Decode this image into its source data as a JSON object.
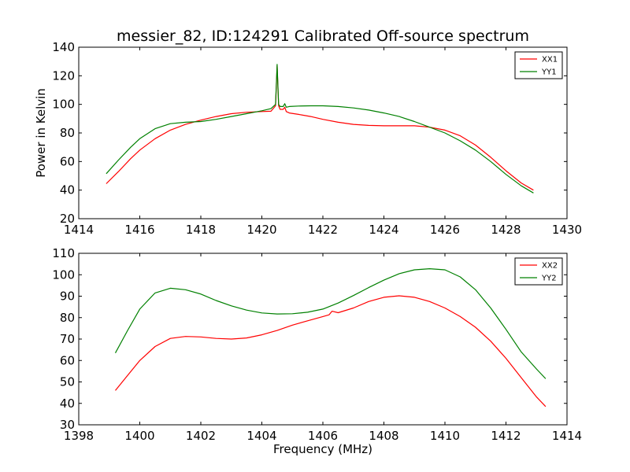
{
  "chart_data": [
    {
      "type": "line",
      "title": "messier_82, ID:124291 Calibrated Off-source spectrum",
      "xlabel": "",
      "ylabel": "Power in Kelvin",
      "xlim": [
        1414,
        1430
      ],
      "ylim": [
        20,
        140
      ],
      "xticks": [
        1414,
        1416,
        1418,
        1420,
        1422,
        1424,
        1426,
        1428,
        1430
      ],
      "yticks": [
        20,
        40,
        60,
        80,
        100,
        120,
        140
      ],
      "legend_position": "top-right",
      "series": [
        {
          "name": "XX1",
          "color": "#ff0000",
          "x": [
            1414.9,
            1415.3,
            1415.7,
            1416.0,
            1416.5,
            1417.0,
            1417.5,
            1418.0,
            1418.5,
            1419.0,
            1419.5,
            1420.0,
            1420.3,
            1420.45,
            1420.5,
            1420.55,
            1420.6,
            1420.7,
            1420.75,
            1420.8,
            1420.9,
            1421.2,
            1421.6,
            1422.0,
            1422.5,
            1423.0,
            1423.5,
            1424.0,
            1424.5,
            1425.0,
            1425.5,
            1426.0,
            1426.5,
            1427.0,
            1427.5,
            1428.0,
            1428.5,
            1428.9
          ],
          "y": [
            44.5,
            53,
            62,
            68,
            76,
            82,
            86,
            89,
            91.5,
            93.5,
            94.5,
            95,
            95.2,
            99,
            127,
            99,
            96.5,
            96.5,
            98,
            95,
            94,
            93,
            91.5,
            89.5,
            87.5,
            86,
            85.3,
            85,
            85,
            85,
            84,
            82,
            78,
            71.5,
            63,
            53.5,
            45,
            40
          ]
        },
        {
          "name": "YY1",
          "color": "#008000",
          "x": [
            1414.9,
            1415.3,
            1415.7,
            1416.0,
            1416.5,
            1417.0,
            1417.5,
            1418.0,
            1418.5,
            1419.0,
            1419.5,
            1420.0,
            1420.3,
            1420.45,
            1420.5,
            1420.55,
            1420.6,
            1420.7,
            1420.75,
            1420.8,
            1420.9,
            1421.2,
            1421.6,
            1422.0,
            1422.5,
            1423.0,
            1423.5,
            1424.0,
            1424.5,
            1425.0,
            1425.5,
            1426.0,
            1426.5,
            1427.0,
            1427.5,
            1428.0,
            1428.5,
            1428.9
          ],
          "y": [
            51.5,
            61,
            70,
            76,
            83,
            86.5,
            87.5,
            88,
            89.5,
            91.5,
            93.5,
            95.5,
            97,
            100,
            128,
            100,
            98.5,
            98.5,
            100.5,
            98,
            98.5,
            98.8,
            99,
            99,
            98.5,
            97.5,
            96,
            94,
            91.5,
            88,
            84,
            80,
            74.5,
            68,
            60,
            51,
            43,
            38
          ]
        }
      ]
    },
    {
      "type": "line",
      "title": "",
      "xlabel": "Frequency (MHz)",
      "ylabel": "",
      "xlim": [
        1398,
        1414
      ],
      "ylim": [
        30,
        110
      ],
      "xticks": [
        1398,
        1400,
        1402,
        1404,
        1406,
        1408,
        1410,
        1412,
        1414
      ],
      "yticks": [
        30,
        40,
        50,
        60,
        70,
        80,
        90,
        100,
        110
      ],
      "legend_position": "top-right",
      "series": [
        {
          "name": "XX2",
          "color": "#ff0000",
          "x": [
            1399.2,
            1399.6,
            1400.0,
            1400.5,
            1401.0,
            1401.5,
            1402.0,
            1402.5,
            1403.0,
            1403.5,
            1404.0,
            1404.5,
            1405.0,
            1405.5,
            1406.0,
            1406.2,
            1406.3,
            1406.5,
            1407.0,
            1407.5,
            1408.0,
            1408.5,
            1409.0,
            1409.5,
            1410.0,
            1410.5,
            1411.0,
            1411.5,
            1412.0,
            1412.5,
            1413.0,
            1413.3
          ],
          "y": [
            46,
            53,
            60,
            66.5,
            70.3,
            71.2,
            71,
            70.3,
            70,
            70.5,
            72,
            74,
            76.5,
            78.5,
            80.5,
            81.3,
            83,
            82.3,
            84.5,
            87.5,
            89.5,
            90.2,
            89.5,
            87.5,
            84.5,
            80.5,
            75.5,
            69,
            61,
            52,
            43,
            38.5
          ]
        },
        {
          "name": "YY2",
          "color": "#008000",
          "x": [
            1399.2,
            1399.6,
            1400.0,
            1400.5,
            1401.0,
            1401.5,
            1402.0,
            1402.5,
            1403.0,
            1403.5,
            1404.0,
            1404.5,
            1405.0,
            1405.5,
            1406.0,
            1406.5,
            1407.0,
            1407.5,
            1408.0,
            1408.5,
            1409.0,
            1409.5,
            1410.0,
            1410.5,
            1411.0,
            1411.5,
            1412.0,
            1412.5,
            1413.0,
            1413.3
          ],
          "y": [
            63.5,
            74,
            84,
            91.5,
            93.7,
            93,
            91,
            88,
            85.5,
            83.5,
            82.2,
            81.7,
            81.8,
            82.5,
            84,
            86.8,
            90.3,
            94,
            97.5,
            100.5,
            102.3,
            102.8,
            102.3,
            99,
            93,
            84.5,
            74.5,
            64,
            56,
            51.5
          ]
        }
      ]
    }
  ]
}
